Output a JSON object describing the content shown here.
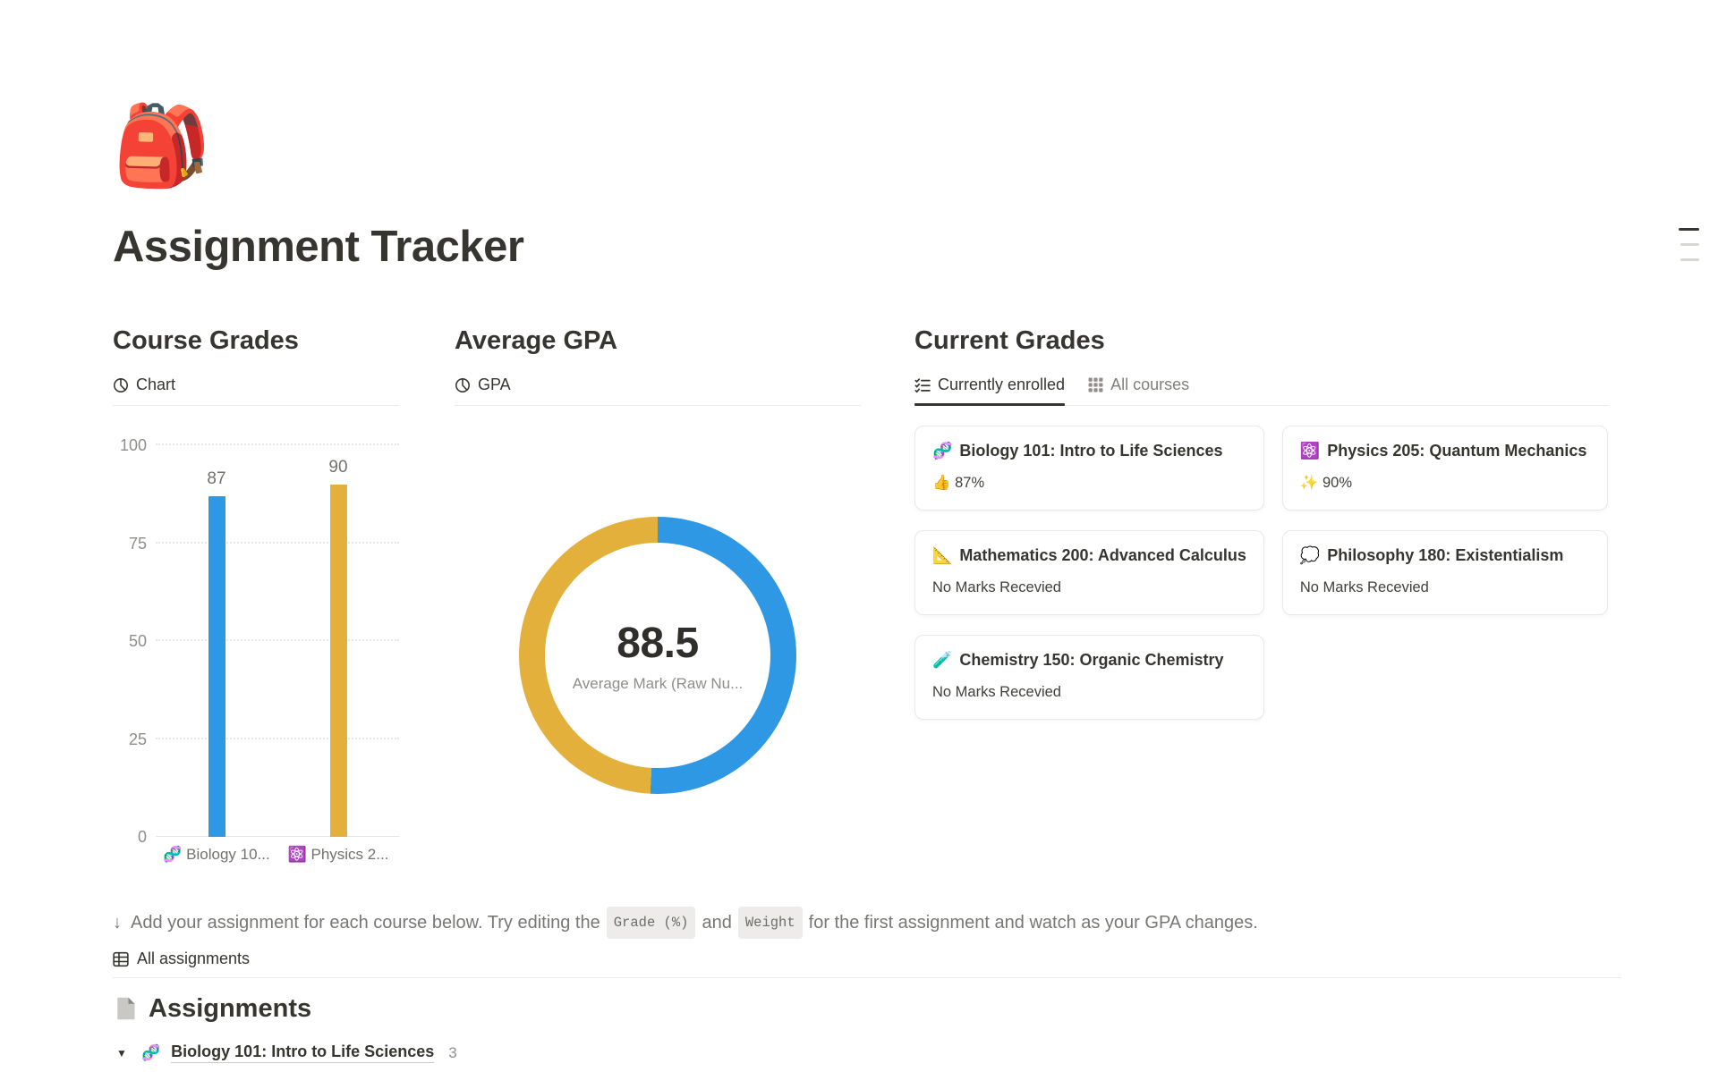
{
  "page": {
    "icon": "🎒",
    "title": "Assignment Tracker"
  },
  "course_grades": {
    "title": "Course Grades",
    "view_tab": "Chart",
    "chart_data": {
      "type": "bar",
      "categories": [
        "🧬 Biology 10...",
        "⚛️ Physics 2..."
      ],
      "values": [
        87,
        90
      ],
      "colors": [
        "#2f98e4",
        "#e2b03b"
      ],
      "ylim": [
        0,
        100
      ],
      "yticks": [
        0,
        25,
        50,
        75,
        100
      ],
      "grid": "horizontal-dotted",
      "value_labels": [
        "87",
        "90"
      ]
    }
  },
  "average_gpa": {
    "title": "Average GPA",
    "view_tab": "GPA",
    "chart_data": {
      "type": "pie",
      "style": "donut",
      "center_value": "88.5",
      "center_label": "Average Mark (Raw Nu...",
      "start": "top-clockwise",
      "slices": [
        {
          "value": 90,
          "color": "#2f98e4"
        },
        {
          "value": 87,
          "color": "#e2b03b"
        }
      ]
    }
  },
  "current_grades": {
    "title": "Current Grades",
    "tabs": [
      {
        "label": "Currently enrolled",
        "active": true
      },
      {
        "label": "All courses",
        "active": false
      }
    ],
    "cards": [
      {
        "emoji": "🧬",
        "title": "Biology 101: Intro to Life Sciences",
        "status": "👍 87%"
      },
      {
        "emoji": "⚛️",
        "title": "Physics 205: Quantum Mechanics",
        "status": "✨ 90%"
      },
      {
        "emoji": "📐",
        "title": "Mathematics 200: Advanced Calculus",
        "status": "No Marks Recevied"
      },
      {
        "emoji": "💭",
        "title": "Philosophy 180: Existentialism",
        "status": "No Marks Recevied"
      },
      {
        "emoji": "🧪",
        "title": "Chemistry 150: Organic Chemistry",
        "status": "No Marks Recevied"
      }
    ]
  },
  "callout": {
    "arrow": "↓",
    "before": "Add your assignment for each course below. Try editing the",
    "code_grade": "Grade (%)",
    "between": "and",
    "code_weight": "Weight",
    "after": "for the first assignment and watch as your GPA changes."
  },
  "assignments": {
    "tab_label": "All assignments",
    "heading": "Assignments",
    "groups": [
      {
        "emoji": "🧬",
        "title": "Biology 101: Intro to Life Sciences",
        "count": "3"
      }
    ]
  },
  "colors": {
    "accent_blue": "#2f98e4",
    "accent_yellow": "#e2b03b",
    "text": "#37352f",
    "muted": "#787774"
  }
}
